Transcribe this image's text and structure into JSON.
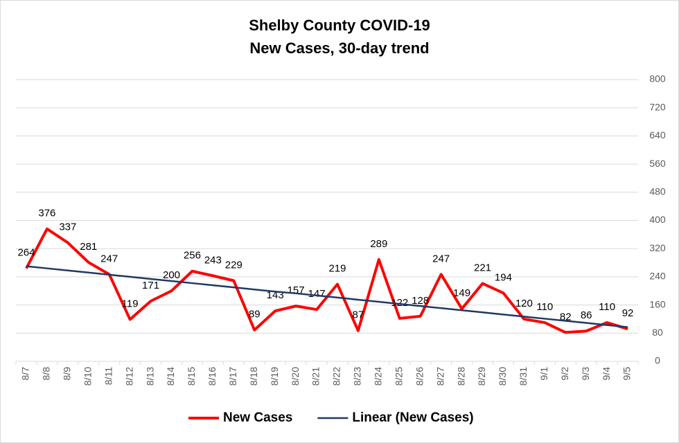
{
  "chart_data": {
    "type": "line",
    "title": "Shelby County COVID-19",
    "subtitle": "New Cases, 30-day trend",
    "categories": [
      "8/7",
      "8/8",
      "8/9",
      "8/10",
      "8/11",
      "8/12",
      "8/13",
      "8/14",
      "8/15",
      "8/16",
      "8/17",
      "8/18",
      "8/19",
      "8/20",
      "8/21",
      "8/22",
      "8/23",
      "8/24",
      "8/25",
      "8/26",
      "8/27",
      "8/28",
      "8/29",
      "8/30",
      "8/31",
      "9/1",
      "9/2",
      "9/3",
      "9/4",
      "9/5"
    ],
    "series": [
      {
        "name": "New Cases",
        "color": "#ff0000",
        "data_labels": true,
        "values": [
          264,
          376,
          337,
          281,
          247,
          119,
          171,
          200,
          256,
          243,
          229,
          89,
          143,
          157,
          147,
          219,
          87,
          289,
          122,
          128,
          247,
          149,
          221,
          194,
          120,
          110,
          82,
          86,
          110,
          92
        ]
      },
      {
        "name": "Linear (New Cases)",
        "color": "#203864",
        "data_labels": false,
        "values": [
          270,
          264,
          258,
          252,
          246,
          240,
          234,
          228,
          222,
          216,
          210,
          204,
          198,
          193,
          187,
          181,
          175,
          169,
          163,
          157,
          151,
          145,
          139,
          133,
          127,
          121,
          115,
          109,
          103,
          97
        ]
      }
    ],
    "ylim": [
      0,
      800
    ],
    "yticks": [
      0,
      80,
      160,
      240,
      320,
      400,
      480,
      560,
      640,
      720,
      800
    ],
    "y_axis_side": "right",
    "grid": true,
    "legend": "bottom"
  }
}
